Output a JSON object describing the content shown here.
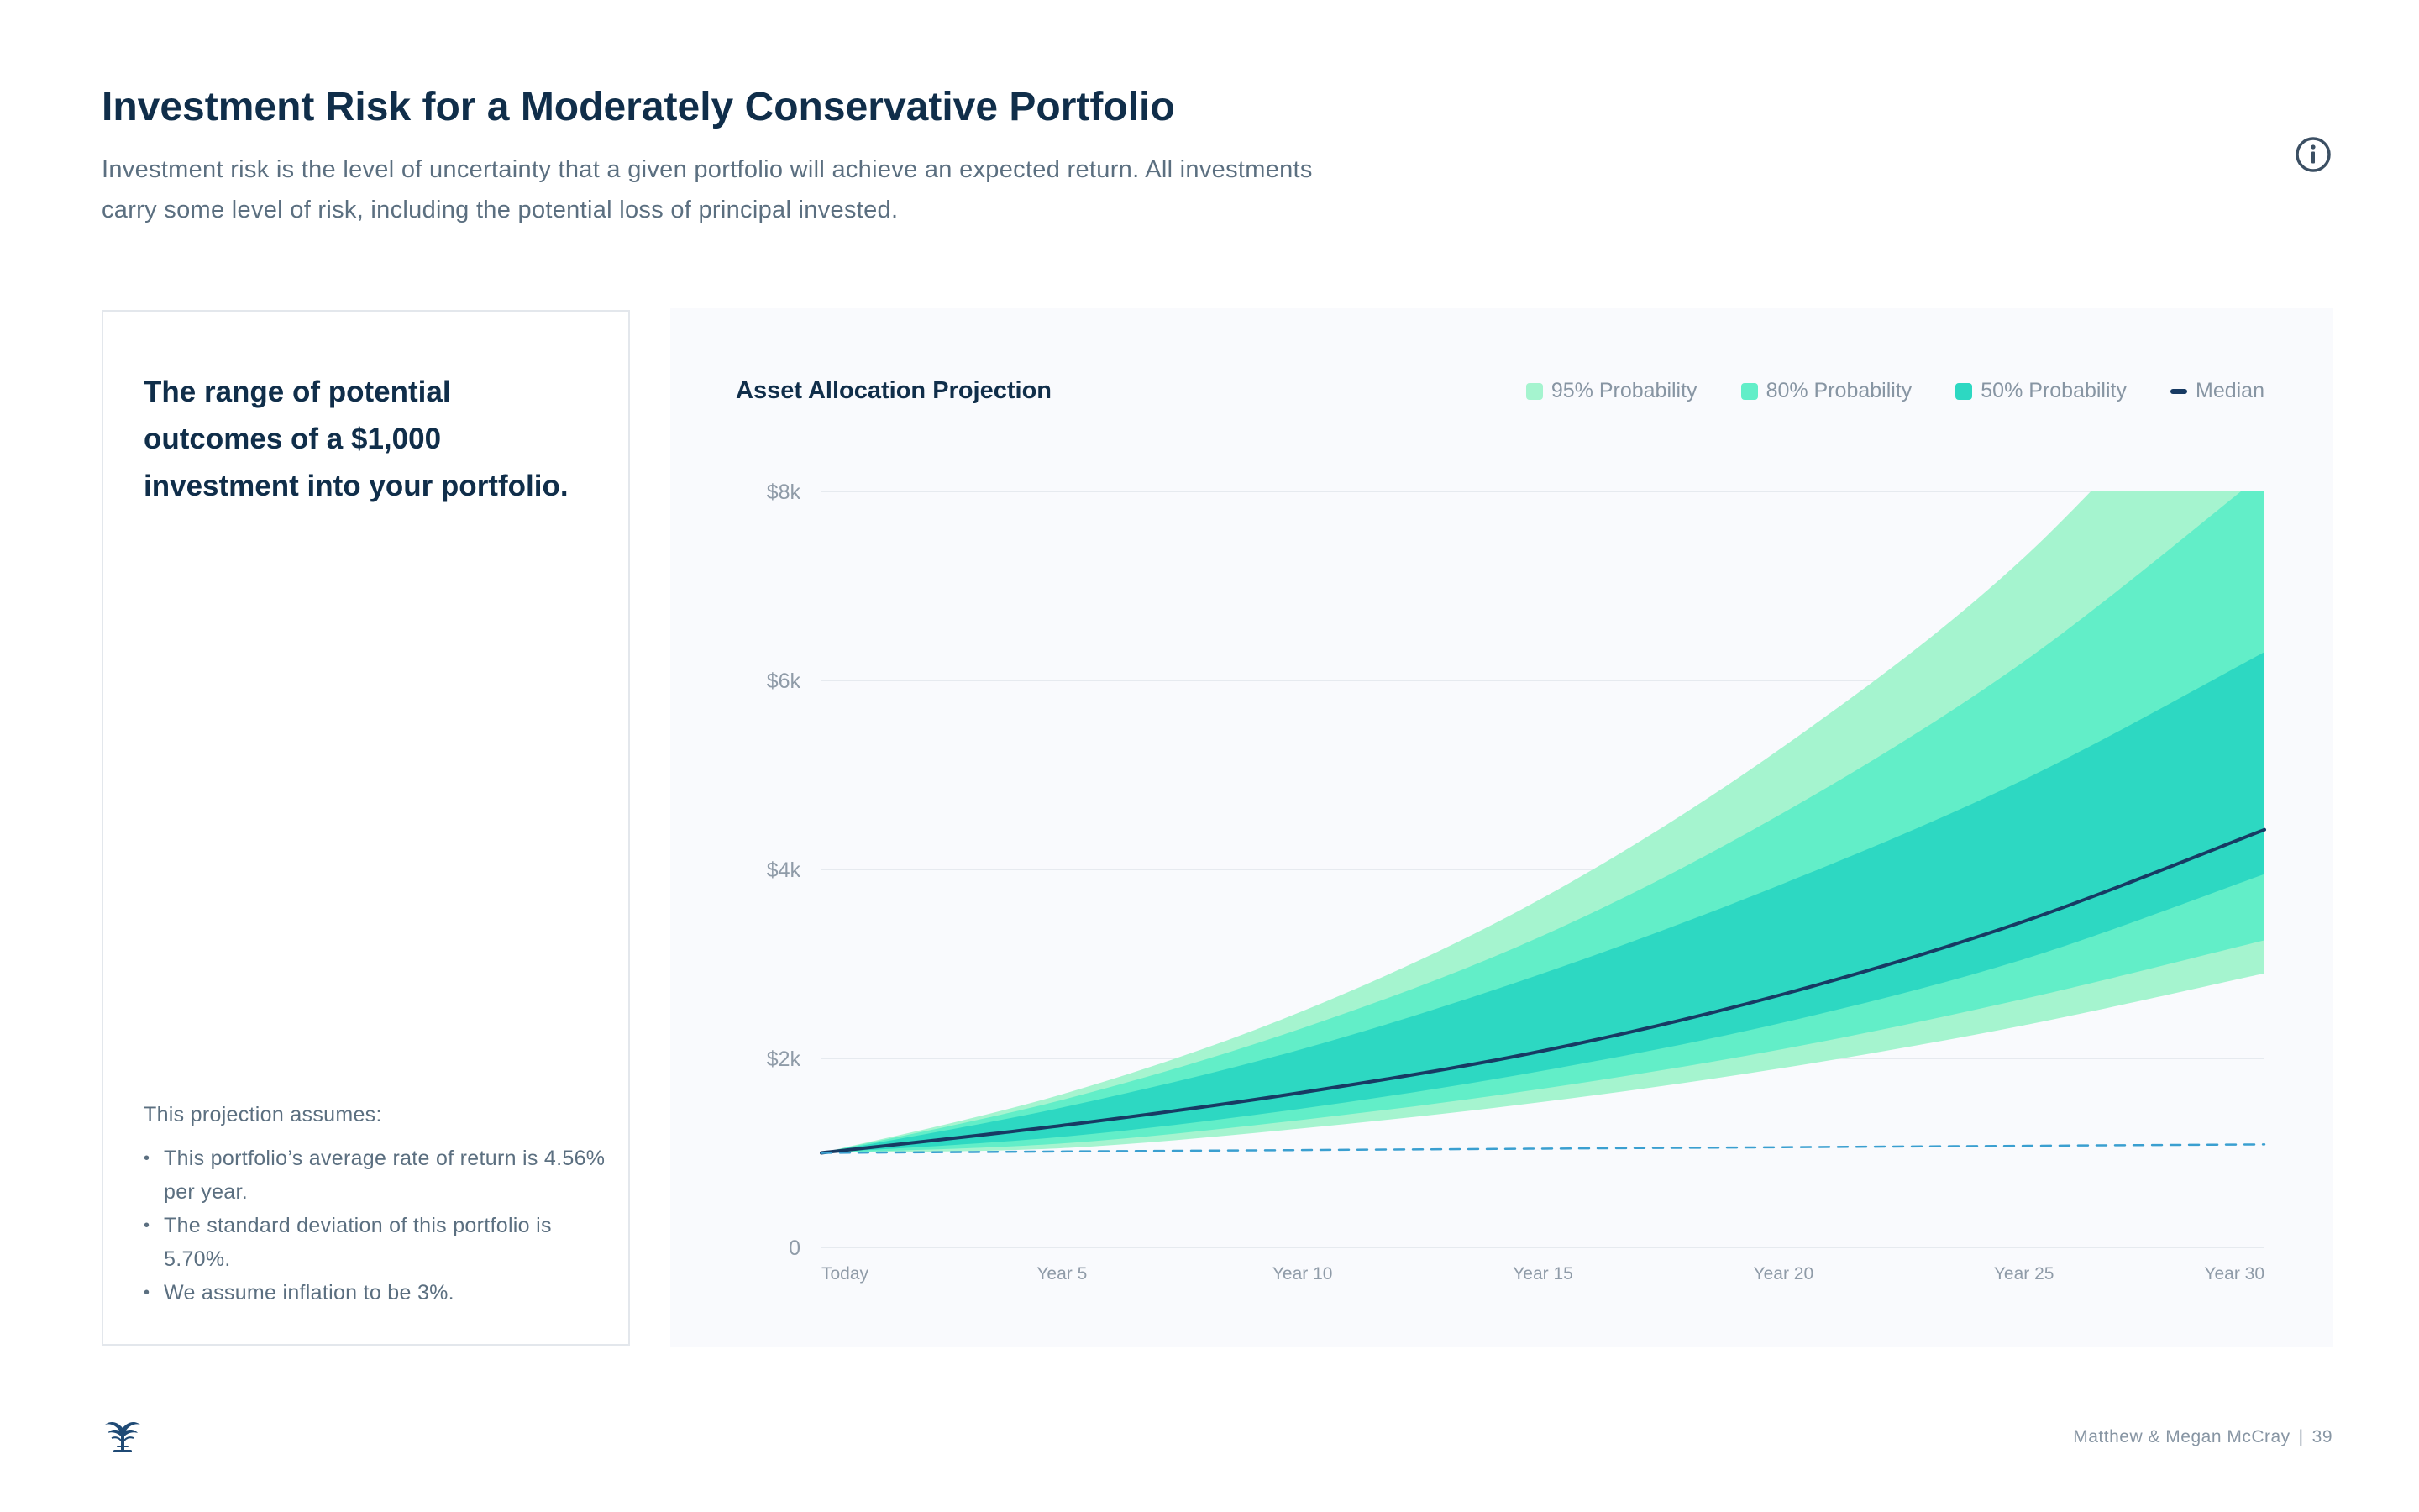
{
  "header": {
    "title": "Investment Risk for a Moderately Conservative Portfolio",
    "subtitle": "Investment risk is the level of uncertainty that a given portfolio will achieve an expected return. All investments carry some level of risk, including the potential loss of principal invested.",
    "info_icon": "info-circle-icon"
  },
  "side_panel": {
    "headline": "The range of potential outcomes of a $1,000 investment into your portfolio.",
    "assumptions_title": "This projection assumes:",
    "assumptions": [
      "This portfolio’s average rate of return is 4.56% per year.",
      "The standard deviation of this portfolio is 5.70%.",
      "We assume inflation to be 3%."
    ]
  },
  "chart_panel": {
    "title": "Asset Allocation Projection",
    "legend": [
      {
        "label": "95% Probability",
        "color": "#a5f4cf",
        "kind": "swatch"
      },
      {
        "label": "80% Probability",
        "color": "#62eec8",
        "kind": "swatch"
      },
      {
        "label": "50% Probability",
        "color": "#2dd8c2",
        "kind": "swatch"
      },
      {
        "label": "Median",
        "color": "#173a63",
        "kind": "line"
      }
    ]
  },
  "chart_data": {
    "type": "area",
    "title": "Asset Allocation Projection",
    "x": [
      0,
      5,
      10,
      15,
      20,
      25,
      30
    ],
    "x_tick_labels": [
      "Today",
      "Year 5",
      "Year 10",
      "Year 15",
      "Year 20",
      "Year 25",
      "Year 30"
    ],
    "y_tick_values": [
      0,
      2000,
      4000,
      6000,
      8000
    ],
    "y_tick_labels": [
      "0",
      "$2k",
      "$4k",
      "$6k",
      "$8k"
    ],
    "ylim": [
      0,
      8000
    ],
    "xlim": [
      0,
      30
    ],
    "grid": true,
    "legend_position": "top-right",
    "bands": [
      {
        "name": "95% Probability",
        "color": "#a5f4cf",
        "upper": [
          1000,
          1620,
          2500,
          3700,
          5300,
          7300,
          10000
        ],
        "lower": [
          1000,
          1050,
          1260,
          1540,
          1900,
          2350,
          2900
        ]
      },
      {
        "name": "80% Probability",
        "color": "#62eec8",
        "upper": [
          1000,
          1560,
          2320,
          3300,
          4600,
          6200,
          8200
        ],
        "lower": [
          1000,
          1100,
          1350,
          1680,
          2100,
          2630,
          3250
        ]
      },
      {
        "name": "50% Probability",
        "color": "#2dd8c2",
        "upper": [
          1000,
          1480,
          2100,
          2900,
          3850,
          4950,
          6300
        ],
        "lower": [
          1000,
          1170,
          1470,
          1870,
          2380,
          3050,
          3950
        ]
      }
    ],
    "series": [
      {
        "name": "Median",
        "color": "#173a63",
        "style": "solid",
        "values": [
          1000,
          1290,
          1640,
          2080,
          2680,
          3450,
          4420
        ]
      },
      {
        "style": "dashed",
        "color": "#3a9fd0",
        "values": [
          1000,
          1015,
          1030,
          1045,
          1060,
          1075,
          1090
        ]
      }
    ]
  },
  "footer": {
    "names": "Matthew & Megan McCray",
    "separator": "|",
    "page_number": "39",
    "logo_icon": "fountain-logo-icon"
  }
}
